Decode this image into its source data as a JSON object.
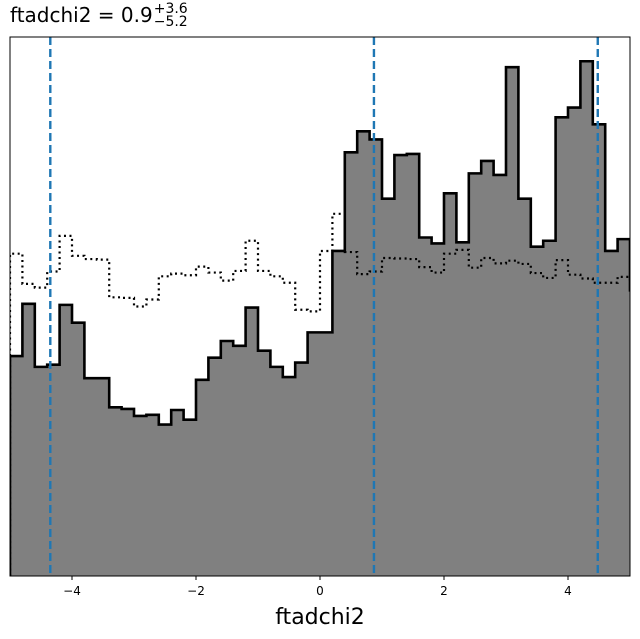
{
  "chart_data": {
    "type": "histogram",
    "title": {
      "prefix": "ftadchi2 = 0.9",
      "upper": "+3.6",
      "lower": "−5.2"
    },
    "xlabel": "ftadchi2",
    "ylabel": "",
    "xlim": [
      -5,
      5
    ],
    "ylim": [
      0,
      1
    ],
    "xticks": [
      -4,
      -2,
      0,
      2,
      4
    ],
    "xtick_labels": [
      "−4",
      "−2",
      "0",
      "2",
      "4"
    ],
    "bin_width": 0.2,
    "bin_start": -5,
    "posterior_values": [
      0.408,
      0.505,
      0.388,
      0.392,
      0.503,
      0.47,
      0.367,
      0.367,
      0.313,
      0.31,
      0.297,
      0.299,
      0.281,
      0.308,
      0.29,
      0.364,
      0.405,
      0.436,
      0.427,
      0.498,
      0.418,
      0.388,
      0.369,
      0.396,
      0.452,
      0.452,
      0.603,
      0.786,
      0.825,
      0.81,
      0.7,
      0.781,
      0.783,
      0.628,
      0.617,
      0.71,
      0.619,
      0.747,
      0.77,
      0.744,
      0.944,
      0.7,
      0.611,
      0.622,
      0.851,
      0.869,
      0.955,
      0.838,
      0.603,
      0.625,
      0.53,
      0.617,
      0.569,
      0.513,
      0.516,
      0.566,
      0.563,
      0.543,
      0.585,
      0.561,
      0.469
    ],
    "prior_values": [
      0.598,
      0.542,
      0.535,
      0.565,
      0.631,
      0.594,
      0.588,
      0.587,
      0.517,
      0.516,
      0.5,
      0.513,
      0.556,
      0.561,
      0.558,
      0.574,
      0.563,
      0.548,
      0.566,
      0.622,
      0.566,
      0.556,
      0.544,
      0.494,
      0.491,
      0.603,
      0.672,
      0.601,
      0.56,
      0.565,
      0.59,
      0.589,
      0.588,
      0.573,
      0.563,
      0.598,
      0.605,
      0.572,
      0.59,
      0.58,
      0.585,
      0.579,
      0.562,
      0.553,
      0.586,
      0.559,
      0.552,
      0.544,
      0.544,
      0.555,
      0.55,
      0.575,
      0.566,
      0.562,
      0.576,
      0.568,
      0.566,
      0.573,
      0.569,
      0.576,
      0.586
    ],
    "quantile_lines": [
      -4.35,
      0.87,
      4.48
    ],
    "quantile_line_color": "#1f77b4",
    "fill_color": "#808080",
    "edge_color": "#000000",
    "grid": false,
    "legend": "none"
  }
}
